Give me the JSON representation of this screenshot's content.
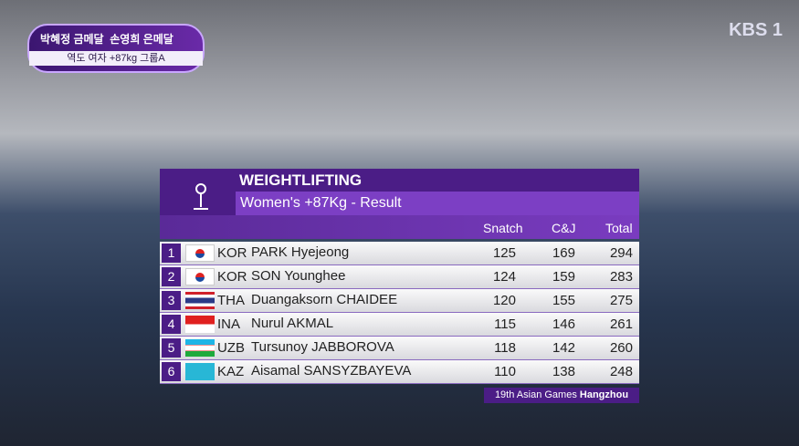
{
  "badge": {
    "gold": "박혜정 금메달",
    "silver": "손영희 은메달",
    "event": "역도 여자 +87kg 그룹A"
  },
  "logo": "KBS 1",
  "header": {
    "title": "WEIGHTLIFTING",
    "subtitle": "Women's +87Kg - Result"
  },
  "table": {
    "columns": [
      "Snatch",
      "C&J",
      "Total"
    ],
    "rows": [
      [
        "1",
        "KOR",
        "PARK Hyejeong",
        "125",
        "169",
        "294"
      ],
      [
        "2",
        "KOR",
        "SON Younghee",
        "124",
        "159",
        "283"
      ],
      [
        "3",
        "THA",
        "Duangaksorn CHAIDEE",
        "120",
        "155",
        "275"
      ],
      [
        "4",
        "INA",
        "Nurul AKMAL",
        "115",
        "146",
        "261"
      ],
      [
        "5",
        "UZB",
        "Tursunoy JABBOROVA",
        "118",
        "142",
        "260"
      ],
      [
        "6",
        "KAZ",
        "Aisamal SANSYZBAYEVA",
        "110",
        "138",
        "248"
      ]
    ]
  },
  "footer": {
    "event": "19th Asian Games",
    "city": "Hangzhou"
  }
}
